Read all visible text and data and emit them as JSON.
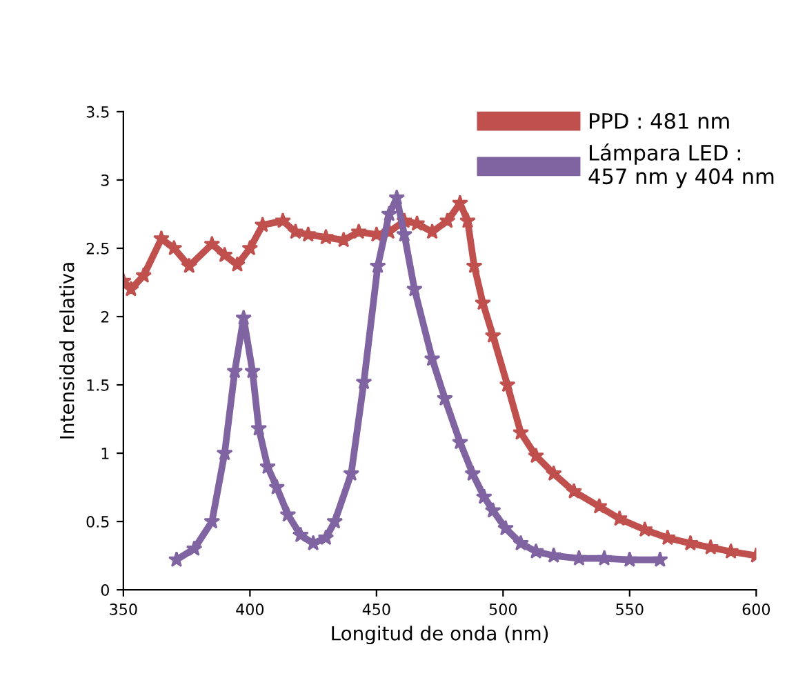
{
  "chart_data": {
    "type": "line",
    "xlabel": "Longitud de onda (nm)",
    "ylabel": "Intensidad relativa",
    "xlim": [
      350,
      600
    ],
    "xticks": [
      350,
      400,
      450,
      500,
      550,
      600
    ],
    "ylim": [
      0,
      3.5
    ],
    "yticks": [
      0,
      0.5,
      1,
      1.5,
      2,
      2.5,
      3,
      3.5
    ],
    "grid": false,
    "legend": "top right",
    "marker": "star",
    "line_style": "solid",
    "series": [
      {
        "name": "PPD : 481 nm",
        "color": "#c0504d",
        "x": [
          350,
          353,
          358,
          365,
          370,
          376,
          385,
          390,
          395,
          400,
          405,
          413,
          418,
          423,
          430,
          437,
          443,
          450,
          455,
          461,
          466,
          472,
          478,
          483,
          486,
          488.6,
          492,
          496,
          501.7,
          507,
          513,
          520,
          528,
          538,
          546,
          556,
          565,
          574,
          582,
          590,
          600
        ],
        "values": [
          2.26,
          2.2,
          2.3,
          2.57,
          2.5,
          2.37,
          2.53,
          2.45,
          2.38,
          2.5,
          2.67,
          2.7,
          2.62,
          2.6,
          2.58,
          2.56,
          2.62,
          2.6,
          2.62,
          2.7,
          2.68,
          2.62,
          2.7,
          2.83,
          2.7,
          2.37,
          2.1,
          1.86,
          1.5,
          1.15,
          0.98,
          0.85,
          0.72,
          0.61,
          0.52,
          0.44,
          0.38,
          0.34,
          0.31,
          0.28,
          0.25
        ]
      },
      {
        "name": "Lámpara LED :\n457 nm y 404 nm",
        "color": "#8064a2",
        "x": [
          371,
          378,
          385,
          390,
          394,
          397.5,
          401,
          403.5,
          407,
          410.6,
          415,
          420,
          425,
          430,
          433.5,
          440,
          445,
          450.5,
          455,
          458,
          461,
          465,
          472,
          477,
          483,
          488,
          492.5,
          496,
          501,
          507,
          513,
          520,
          530,
          540,
          550,
          562
        ],
        "values": [
          0.22,
          0.3,
          0.5,
          1.0,
          1.6,
          1.99,
          1.6,
          1.18,
          0.9,
          0.75,
          0.55,
          0.4,
          0.34,
          0.38,
          0.5,
          0.85,
          1.52,
          2.37,
          2.75,
          2.87,
          2.6,
          2.2,
          1.69,
          1.4,
          1.08,
          0.85,
          0.68,
          0.58,
          0.45,
          0.34,
          0.28,
          0.25,
          0.23,
          0.23,
          0.22,
          0.22
        ]
      }
    ]
  }
}
